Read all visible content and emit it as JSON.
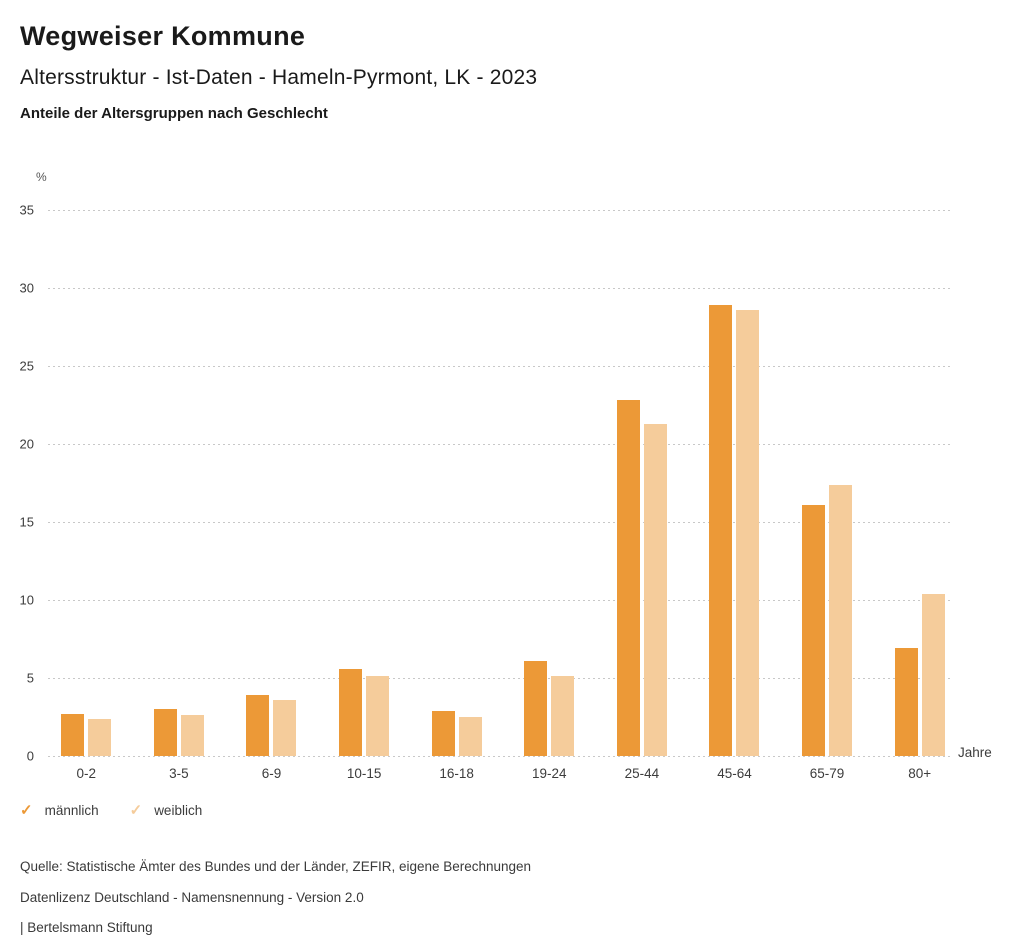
{
  "header": {
    "title": "Wegweiser Kommune",
    "subtitle": "Altersstruktur - Ist-Daten - Hameln-Pyrmont, LK - 2023",
    "chart_heading": "Anteile der Altersgruppen nach Geschlecht"
  },
  "chart_data": {
    "type": "bar",
    "title": "Anteile der Altersgruppen nach Geschlecht",
    "y_unit": "%",
    "x_unit": "Jahre",
    "categories": [
      "0-2",
      "3-5",
      "6-9",
      "10-15",
      "16-18",
      "19-24",
      "25-44",
      "45-64",
      "65-79",
      "80+"
    ],
    "series": [
      {
        "name": "männlich",
        "color": "#EC9937",
        "values": [
          2.7,
          3.0,
          3.9,
          5.6,
          2.9,
          6.1,
          22.8,
          28.9,
          16.1,
          6.9
        ]
      },
      {
        "name": "weiblich",
        "color": "#F5CC9B",
        "values": [
          2.4,
          2.6,
          3.6,
          5.1,
          2.5,
          5.1,
          21.3,
          28.6,
          17.4,
          10.4
        ]
      }
    ],
    "ylim": [
      0,
      35
    ],
    "yticks": [
      0,
      5,
      10,
      15,
      20,
      25,
      30,
      35
    ],
    "grid": "horizontal-dotted",
    "legend_position": "bottom-left",
    "legend_marker": "check-icon"
  },
  "footer": {
    "source": "Quelle: Statistische Ämter des Bundes und der Länder, ZEFIR, eigene Berechnungen",
    "license": "Datenlizenz Deutschland - Namensnennung - Version 2.0",
    "attribution": "| Bertelsmann Stiftung"
  }
}
